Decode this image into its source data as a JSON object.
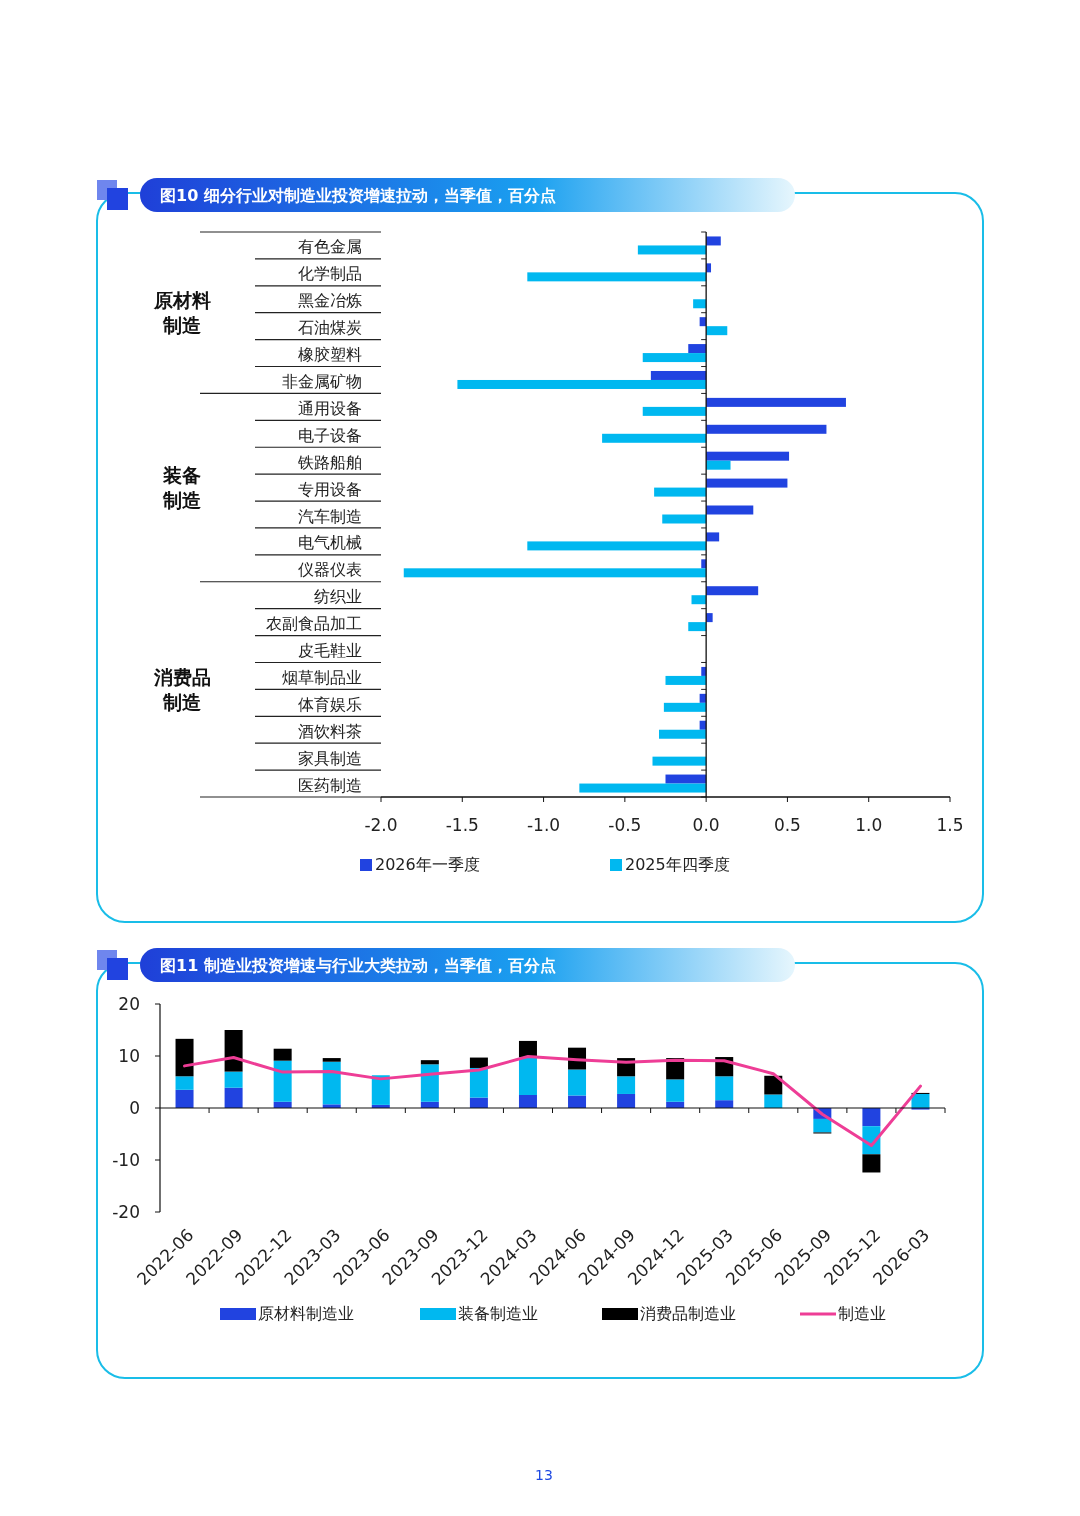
{
  "chart_data": [
    {
      "type": "bar",
      "orientation": "horizontal",
      "title": "图10 细分行业对制造业投资增速拉动，当季值，百分点",
      "categories": [
        "有色金属",
        "化学制品",
        "黑金冶炼",
        "石油煤炭",
        "橡胶塑料",
        "非金属矿物",
        "通用设备",
        "电子设备",
        "铁路船舶",
        "专用设备",
        "汽车制造",
        "电气机械",
        "仪器仪表",
        "纺织业",
        "农副食品加工",
        "皮毛鞋业",
        "烟草制品业",
        "体育娱乐",
        "酒饮料茶",
        "家具制造",
        "医药制造"
      ],
      "series": [
        {
          "name": "2026年一季度",
          "color": "#2143e0",
          "values": [
            0.09,
            0.03,
            0,
            -0.04,
            -0.11,
            -0.34,
            0.86,
            0.74,
            0.51,
            0.5,
            0.29,
            0.08,
            -0.03,
            0.32,
            0.04,
            0,
            -0.03,
            -0.04,
            -0.04,
            0,
            -0.25
          ]
        },
        {
          "name": "2025年四季度",
          "color": "#00b8f0",
          "values": [
            -0.42,
            -1.1,
            -0.08,
            0.13,
            -0.39,
            -1.53,
            -0.39,
            -0.64,
            0.15,
            -0.32,
            -0.27,
            -1.1,
            -1.86,
            -0.09,
            -0.11,
            0,
            -0.25,
            -0.26,
            -0.29,
            -0.33,
            -0.78
          ]
        }
      ],
      "xlim": [
        -2,
        1.5
      ],
      "xticks": [
        {
          "value": -2,
          "label": "-2.0"
        },
        {
          "value": -1.5,
          "label": "-1.5"
        },
        {
          "value": -1,
          "label": "-1.0"
        },
        {
          "value": -0.5,
          "label": "-0.5"
        },
        {
          "value": 0,
          "label": "0.0"
        },
        {
          "value": 0.5,
          "label": "0.5"
        },
        {
          "value": 1,
          "label": "1.0"
        },
        {
          "value": 1.5,
          "label": "1.5"
        }
      ],
      "annotations": [
        "原材料制造",
        "装备制造",
        "消费品制造"
      ],
      "legend": "bottom",
      "grid": false
    },
    {
      "type": "bar",
      "stacked": true,
      "title": "图11 制造业投资增速与行业大类拉动，当季值，百分点",
      "categories": [
        "2022-06",
        "2022-09",
        "2022-12",
        "2023-03",
        "2023-06",
        "2023-09",
        "2023-12",
        "2024-03",
        "2024-06",
        "2024-09",
        "2024-12",
        "2025-03",
        "2025-06",
        "2025-09",
        "2025-12",
        "2026-03"
      ],
      "series": [
        {
          "name": "原材料制造业",
          "color": "#2143e0",
          "values": [
            3.5,
            3.9,
            1.2,
            0.7,
            0.6,
            1.2,
            2.0,
            2.5,
            2.4,
            2.7,
            1.2,
            1.5,
            null,
            -2.1,
            -3.5,
            -0.3
          ]
        },
        {
          "name": "装备制造业",
          "color": "#00b8f0",
          "values": [
            2.6,
            3.1,
            7.9,
            8.2,
            5.7,
            7.2,
            5.7,
            7.3,
            5.0,
            3.4,
            4.3,
            4.6,
            2.6,
            -2.6,
            -5.4,
            2.7
          ]
        },
        {
          "name": "消费品制造业",
          "color": "#000000",
          "values": [
            7.2,
            8.0,
            2.3,
            0.7,
            0,
            0.8,
            2.0,
            3.1,
            4.2,
            3.5,
            4.1,
            3.7,
            3.6,
            -0.2,
            -3.5,
            0.2
          ]
        },
        {
          "name": "制造业",
          "type": "line",
          "color": "#ee3d96",
          "values": [
            8.1,
            9.7,
            6.9,
            7.0,
            5.6,
            6.5,
            7.3,
            9.9,
            9.3,
            8.8,
            9.2,
            9.1,
            6.6,
            -1.2,
            -7.2,
            4.2
          ]
        }
      ],
      "ylim": [
        -20,
        20
      ],
      "yticks": [
        -20,
        -10,
        0,
        10,
        20
      ],
      "annotations": [
        "13"
      ],
      "legend": "bottom",
      "grid": false,
      "marker": "none",
      "line_style": "solid"
    }
  ]
}
